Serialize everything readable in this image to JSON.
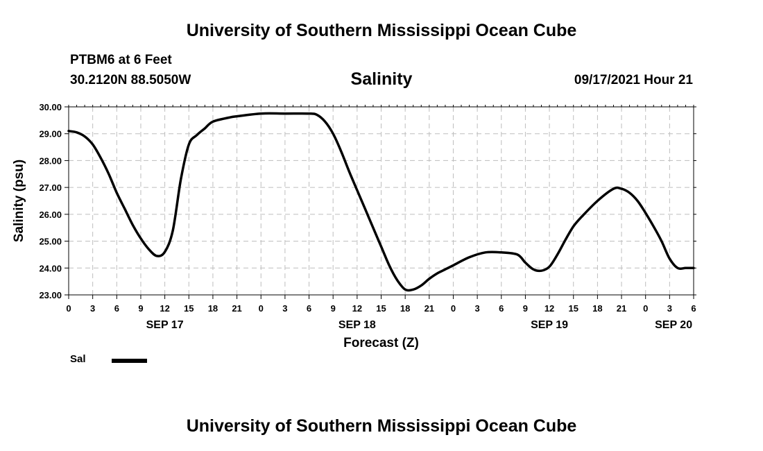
{
  "header": {
    "title": "University of Southern Mississippi Ocean Cube",
    "station": "PTBM6 at 6 Feet",
    "coords": "30.2120N  88.5050W",
    "variable": "Salinity",
    "datetime": "09/17/2021 Hour 21"
  },
  "footer": {
    "title": "University of Southern Mississippi Ocean Cube"
  },
  "legend": {
    "label": "Sal",
    "color": "#000000"
  },
  "chart_data": {
    "type": "line",
    "title": "Salinity",
    "xlabel": "Forecast (Z)",
    "ylabel": "Salinity (psu)",
    "xlim": [
      0,
      78
    ],
    "ylim": [
      23.0,
      30.0
    ],
    "yticks": [
      "23.00",
      "24.00",
      "25.00",
      "26.00",
      "27.00",
      "28.00",
      "29.00",
      "30.00"
    ],
    "yticks_values": [
      23,
      24,
      25,
      26,
      27,
      28,
      29,
      30
    ],
    "xticks": [
      "0",
      "3",
      "6",
      "9",
      "12",
      "15",
      "18",
      "21",
      "0",
      "3",
      "6",
      "9",
      "12",
      "15",
      "18",
      "21",
      "0",
      "3",
      "6",
      "9",
      "12",
      "15",
      "18",
      "21",
      "0",
      "3",
      "6"
    ],
    "date_labels": [
      {
        "label": "SEP 17",
        "x": 12
      },
      {
        "label": "SEP 18",
        "x": 36
      },
      {
        "label": "SEP 19",
        "x": 60
      },
      {
        "label": "SEP 20",
        "x": 75.5
      }
    ],
    "grid": true,
    "series": [
      {
        "name": "Sal",
        "x": [
          0,
          1,
          2,
          3,
          4,
          5,
          6,
          7,
          8,
          9,
          10,
          11,
          12,
          13,
          14,
          15,
          16,
          17,
          18,
          20,
          21,
          24,
          27,
          30,
          31,
          32,
          33,
          34,
          35,
          36,
          37,
          38,
          39,
          40,
          41,
          42,
          43,
          44,
          45,
          46,
          47,
          48,
          50,
          52,
          54,
          56,
          57,
          58,
          59,
          60,
          61,
          62,
          63,
          64,
          66,
          68,
          69,
          70,
          71,
          72,
          73,
          74,
          75,
          76,
          77,
          78
        ],
        "values": [
          29.1,
          29.05,
          28.9,
          28.6,
          28.1,
          27.5,
          26.8,
          26.2,
          25.6,
          25.1,
          24.7,
          24.45,
          24.6,
          25.4,
          27.3,
          28.6,
          28.95,
          29.2,
          29.45,
          29.6,
          29.65,
          29.75,
          29.75,
          29.75,
          29.7,
          29.45,
          29.0,
          28.35,
          27.6,
          26.9,
          26.2,
          25.5,
          24.8,
          24.1,
          23.55,
          23.2,
          23.2,
          23.35,
          23.6,
          23.8,
          23.95,
          24.1,
          24.4,
          24.58,
          24.58,
          24.5,
          24.2,
          23.95,
          23.9,
          24.05,
          24.5,
          25.05,
          25.55,
          25.9,
          26.5,
          26.95,
          26.95,
          26.8,
          26.5,
          26.05,
          25.55,
          25.0,
          24.35,
          24.0,
          24.0,
          24.0
        ]
      }
    ]
  }
}
